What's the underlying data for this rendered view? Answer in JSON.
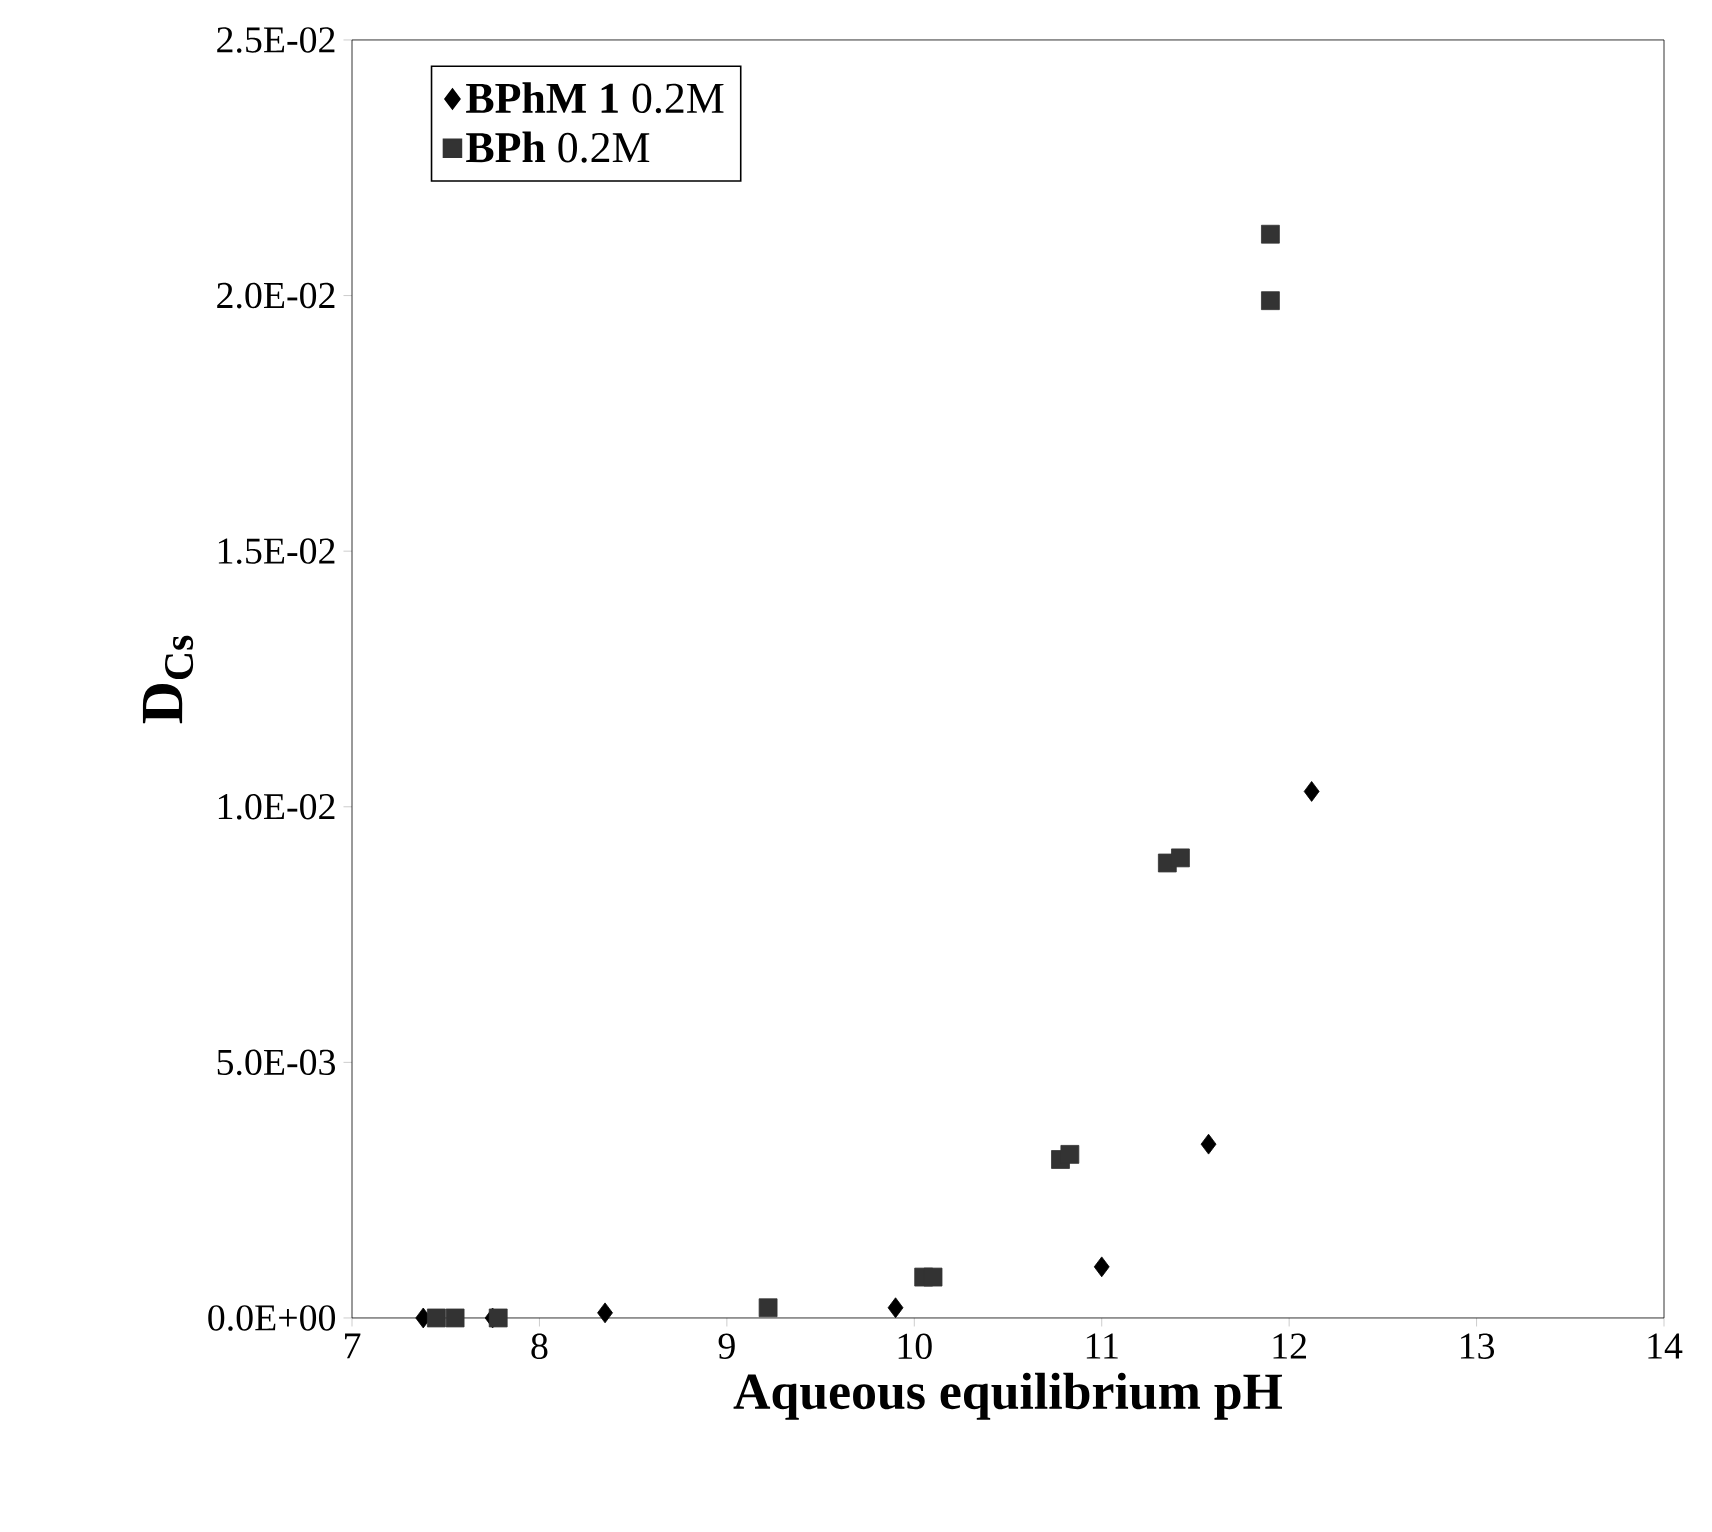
{
  "chart_data": {
    "type": "scatter",
    "xlabel": "Aqueous equilibrium pH",
    "ylabel": "D$_{Cs}$",
    "series": [
      {
        "name": "**BPhM 1** 0.2M",
        "color": "#000000",
        "marker": "diamond",
        "x": [
          7.38,
          7.75,
          8.35,
          9.9,
          11.0,
          11.57,
          12.12
        ],
        "values": [
          0,
          0,
          0.0001,
          0.0002,
          0.001,
          0.0034,
          0.0103
        ]
      },
      {
        "name": "**BPh** 0.2M",
        "color": "#333333",
        "marker": "square",
        "x": [
          7.45,
          7.55,
          7.78,
          9.22,
          10.05,
          10.1,
          10.78,
          10.83,
          11.35,
          11.42,
          11.9,
          11.9
        ],
        "values": [
          0,
          0,
          0,
          0.0002,
          0.0008,
          0.0008,
          0.0031,
          0.0032,
          0.0089,
          0.009,
          0.0212,
          0.0199
        ]
      }
    ],
    "xlim": [
      7,
      14
    ],
    "xticks": [
      7,
      8,
      9,
      10,
      11,
      12,
      13,
      14
    ],
    "ylim": [
      0,
      0.025
    ],
    "yticks": [
      {
        "value": 0,
        "label": "0.0E+00"
      },
      {
        "value": 0.005,
        "label": "5.0E-03"
      },
      {
        "value": 0.01,
        "label": "1.0E-02"
      },
      {
        "value": 0.015,
        "label": "1.5E-02"
      },
      {
        "value": 0.02,
        "label": "2.0E-02"
      },
      {
        "value": 0.025,
        "label": "2.5E-02"
      }
    ],
    "grid": false,
    "legend": "top left"
  }
}
